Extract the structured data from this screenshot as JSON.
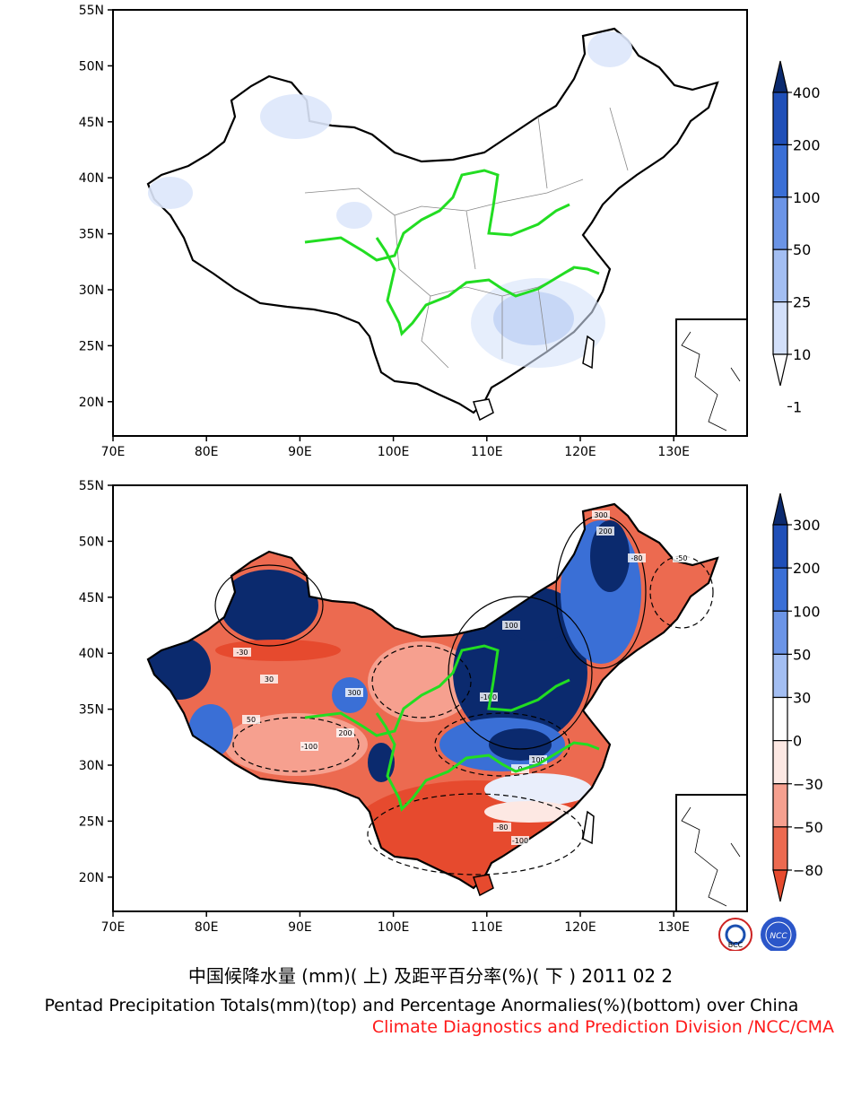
{
  "top_map": {
    "lat_ticks": [
      "55N",
      "50N",
      "45N",
      "40N",
      "35N",
      "30N",
      "25N",
      "20N"
    ],
    "lon_ticks": [
      "70E",
      "80E",
      "90E",
      "100E",
      "110E",
      "120E",
      "130E"
    ],
    "colorbar": {
      "labels": [
        "400",
        "200",
        "100",
        "50",
        "25",
        "10",
        "1"
      ],
      "colors": [
        "#0b2a6e",
        "#1f4fb8",
        "#3a6fd6",
        "#6b94e6",
        "#a3bef2",
        "#d3e0fa",
        "#ffffff"
      ]
    }
  },
  "bottom_map": {
    "lat_ticks": [
      "55N",
      "50N",
      "45N",
      "40N",
      "35N",
      "30N",
      "25N",
      "20N"
    ],
    "lon_ticks": [
      "70E",
      "80E",
      "90E",
      "100E",
      "110E",
      "120E",
      "130E"
    ],
    "colorbar": {
      "labels": [
        "300",
        "200",
        "100",
        "50",
        "30",
        "0",
        "−30",
        "−50",
        "−80"
      ],
      "colors": [
        "#0b2a6e",
        "#1f4fb8",
        "#3a6fd6",
        "#6b94e6",
        "#a3bef2",
        "#ffffff",
        "#fde8e3",
        "#f6a08f",
        "#ec6a50",
        "#e64a2e"
      ]
    },
    "contour_labels": [
      "300",
      "200",
      "100",
      "-100",
      "-80",
      "-50",
      "-30",
      "30",
      "50",
      "0",
      "-100",
      "200",
      "300",
      "100",
      "-80",
      "-100"
    ]
  },
  "logos": [
    "BCC",
    "NCC"
  ],
  "captions": {
    "chinese": "中国候降水量 (mm)( 上) 及距平百分率(%)( 下 ) 2011 02 2",
    "english": "Pentad Precipitation Totals(mm)(top) and Percentage Anormalies(%)(bottom) over China",
    "credit": "Climate Diagnostics and Prediction Division /NCC/CMA"
  },
  "colors": {
    "river": "#22dd22",
    "border": "#000000"
  }
}
